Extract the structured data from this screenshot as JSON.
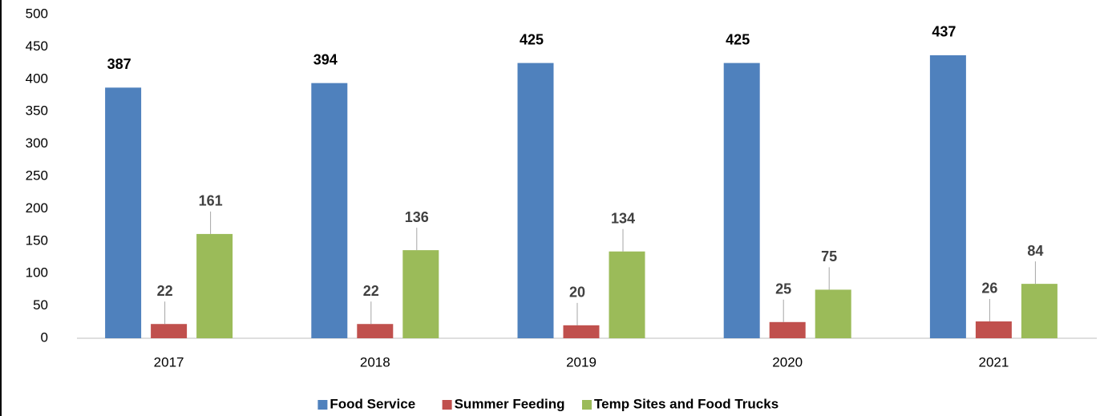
{
  "chart_data": {
    "type": "bar",
    "categories": [
      "2017",
      "2018",
      "2019",
      "2020",
      "2021"
    ],
    "series": [
      {
        "name": "Food Service",
        "color": "#4f81bd",
        "values": [
          387,
          394,
          425,
          425,
          437
        ]
      },
      {
        "name": "Summer Feeding",
        "color": "#c0504d",
        "values": [
          22,
          22,
          20,
          25,
          26
        ]
      },
      {
        "name": "Temp Sites and Food Trucks",
        "color": "#9bbb59",
        "values": [
          161,
          136,
          134,
          75,
          84
        ]
      }
    ],
    "ylim": [
      0,
      500
    ],
    "yticks": [
      0,
      50,
      100,
      150,
      200,
      250,
      300,
      350,
      400,
      450,
      500
    ],
    "grid": false,
    "legend": "bottom"
  }
}
